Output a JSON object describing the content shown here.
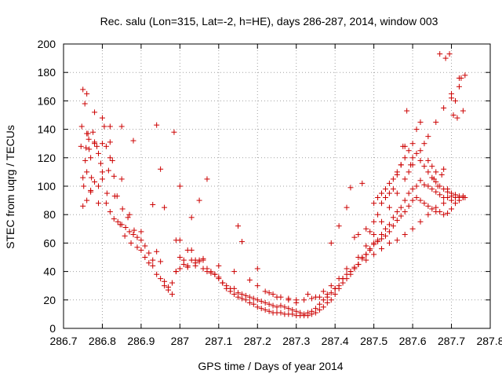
{
  "chart_data": {
    "type": "scatter",
    "title": "Rec. salu (Lon=315, Lat=-2, h=HE), days 286-287, 2014, window 003",
    "xlabel": "GPS time / Days of year 2014",
    "ylabel": "STEC from uqrg / TECUs",
    "xlim": [
      286.7,
      287.8
    ],
    "ylim": [
      0,
      200
    ],
    "xticks": [
      "286.7",
      "286.8",
      "286.9",
      "287",
      "287.1",
      "287.2",
      "287.3",
      "287.4",
      "287.5",
      "287.6",
      "287.7",
      "287.8"
    ],
    "yticks": [
      "0",
      "20",
      "40",
      "60",
      "80",
      "100",
      "120",
      "140",
      "160",
      "180",
      "200"
    ],
    "grid": true,
    "marker": "plus",
    "color": "#cc0000",
    "series": [
      {
        "x": [
          286.745,
          286.747,
          286.75,
          286.752,
          286.756,
          286.758,
          286.76,
          286.763,
          286.766,
          286.77,
          286.772,
          286.776,
          286.78,
          286.786,
          286.79,
          286.796,
          286.8,
          286.805,
          286.812,
          286.816,
          286.82,
          286.826,
          286.832,
          286.838,
          286.846,
          286.852,
          286.858,
          286.866,
          286.874,
          286.882,
          286.89,
          286.9,
          286.91,
          286.92,
          286.93,
          286.94,
          286.95,
          286.96,
          286.97,
          286.98,
          286.99,
          287.0,
          287.01,
          287.02,
          287.03,
          287.04,
          287.05,
          287.06,
          287.07,
          287.08,
          287.09,
          287.1,
          287.11,
          287.12,
          287.13,
          287.14,
          287.15,
          287.16,
          287.17,
          287.18,
          287.19,
          287.2,
          287.21,
          287.22,
          287.23,
          287.24,
          287.25,
          287.26,
          287.27,
          287.28,
          287.29,
          287.3,
          287.31,
          287.32,
          287.33,
          287.34,
          287.35,
          287.36,
          287.37,
          287.38,
          287.39,
          287.4,
          287.41,
          287.42,
          287.43,
          287.44,
          287.45,
          287.46,
          287.47,
          287.48,
          287.49,
          287.5,
          287.51,
          287.52,
          287.53,
          287.54,
          287.55,
          287.56,
          287.57,
          287.58,
          287.59,
          287.6,
          287.61,
          287.62,
          287.63,
          287.64,
          287.65,
          287.66,
          287.67,
          287.68,
          287.69,
          287.7,
          287.71,
          287.72,
          287.73,
          287.735
        ],
        "y": [
          128,
          142,
          106,
          100,
          118,
          127,
          110,
          137,
          126,
          96,
          106,
          138,
          131,
          128,
          100,
          116,
          130,
          142,
          95,
          111,
          120,
          118,
          93,
          93,
          73,
          84,
          65,
          78,
          60,
          69,
          57,
          55,
          50,
          46,
          44,
          54,
          47,
          30,
          29,
          32,
          40,
          62,
          45,
          55,
          55,
          48,
          47,
          49,
          42,
          40,
          38,
          35,
          32,
          30,
          28,
          28,
          25,
          24,
          23,
          22,
          21,
          20,
          19,
          18,
          17,
          16,
          15,
          16,
          15,
          14,
          13,
          12,
          11,
          10,
          11,
          12,
          14,
          17,
          20,
          22,
          25,
          28,
          30,
          35,
          38,
          40,
          43,
          45,
          50,
          52,
          55,
          60,
          62,
          66,
          70,
          73,
          78,
          82,
          85,
          90,
          95,
          98,
          100,
          104,
          101,
          100,
          98,
          96,
          94,
          92,
          92,
          93,
          92,
          92,
          93,
          92
        ]
      },
      {
        "x": [
          286.75,
          286.76,
          286.77,
          286.78,
          286.79,
          286.8,
          286.81,
          286.82,
          286.83,
          286.84,
          286.85,
          286.86,
          286.87,
          286.88,
          286.89,
          286.9,
          286.91,
          286.92,
          286.93,
          286.94,
          286.95,
          286.96,
          286.97,
          286.98,
          286.99,
          287.0,
          287.01,
          287.02,
          287.03,
          287.04,
          287.05,
          287.06,
          287.07,
          287.08,
          287.09,
          287.1,
          287.11,
          287.12,
          287.13,
          287.14,
          287.15,
          287.16,
          287.17,
          287.18,
          287.19,
          287.2,
          287.21,
          287.22,
          287.23,
          287.24,
          287.25,
          287.26,
          287.27,
          287.28,
          287.29,
          287.3,
          287.31,
          287.32,
          287.33,
          287.34,
          287.35,
          287.36,
          287.37,
          287.38,
          287.39,
          287.4,
          287.41,
          287.42,
          287.43,
          287.44,
          287.45,
          287.46,
          287.47,
          287.48,
          287.49,
          287.5,
          287.51,
          287.52,
          287.53,
          287.54,
          287.55,
          287.56,
          287.57,
          287.58,
          287.59,
          287.6,
          287.61,
          287.62,
          287.63,
          287.64,
          287.65,
          287.66,
          287.67,
          287.68,
          287.69,
          287.7,
          287.71,
          287.72,
          287.73
        ],
        "y": [
          86,
          90,
          97,
          103,
          88,
          105,
          88,
          82,
          77,
          75,
          73,
          71,
          68,
          66,
          64,
          62,
          58,
          53,
          48,
          38,
          35,
          33,
          27,
          24,
          40,
          42,
          48,
          44,
          48,
          46,
          48,
          42,
          40,
          39,
          38,
          36,
          32,
          28,
          26,
          24,
          22,
          21,
          20,
          18,
          17,
          15,
          14,
          13,
          12,
          11,
          11,
          11,
          10,
          10,
          10,
          9,
          9,
          9,
          9,
          10,
          11,
          13,
          15,
          18,
          20,
          24,
          28,
          32,
          35,
          38,
          42,
          45,
          49,
          52,
          56,
          59,
          61,
          63,
          65,
          68,
          72,
          76,
          79,
          82,
          86,
          90,
          92,
          90,
          88,
          86,
          84,
          82,
          82,
          80,
          81,
          84,
          88,
          90,
          92
        ]
      },
      {
        "x": [
          286.75,
          286.755,
          286.76,
          286.765,
          286.77,
          286.78,
          286.79,
          286.8,
          286.81,
          286.82,
          286.83,
          286.85,
          286.87,
          286.9,
          286.93,
          286.96,
          286.99,
          287.0,
          287.02,
          287.04,
          287.06,
          287.1,
          287.14,
          287.18,
          287.2,
          287.22,
          287.24,
          287.26,
          287.28,
          287.3,
          287.32,
          287.34,
          287.36,
          287.38,
          287.4,
          287.42,
          287.44,
          287.46,
          287.48,
          287.5,
          287.52,
          287.54,
          287.56,
          287.58,
          287.6,
          287.62,
          287.64,
          287.66,
          287.68,
          287.7,
          287.72
        ],
        "y": [
          168,
          158,
          137,
          133,
          120,
          130,
          123,
          110,
          128,
          131,
          107,
          105,
          80,
          68,
          87,
          85,
          62,
          50,
          43,
          44,
          48,
          44,
          40,
          34,
          30,
          26,
          24,
          22,
          21,
          20,
          20,
          21,
          22,
          24,
          28,
          35,
          40,
          45,
          48,
          52,
          56,
          60,
          62,
          66,
          70,
          75,
          80,
          85,
          88,
          90,
          92
        ]
      },
      {
        "x": [
          286.76,
          286.78,
          286.8,
          286.82,
          286.85,
          286.88,
          286.94,
          286.95,
          286.985,
          287.0,
          287.03,
          287.05,
          287.07,
          287.15,
          287.16,
          287.2,
          287.23,
          287.25,
          287.28,
          287.3,
          287.33,
          287.35,
          287.37,
          287.39,
          287.41,
          287.43,
          287.46,
          287.48,
          287.5,
          287.52,
          287.54,
          287.56,
          287.58,
          287.6,
          287.62,
          287.64,
          287.66,
          287.68,
          287.7,
          287.72
        ],
        "y": [
          165,
          152,
          148,
          142,
          142,
          132,
          143,
          112,
          138,
          100,
          78,
          90,
          105,
          72,
          61,
          42,
          25,
          22,
          20,
          18,
          24,
          22,
          26,
          30,
          35,
          42,
          50,
          58,
          66,
          75,
          85,
          95,
          105,
          115,
          125,
          135,
          145,
          155,
          165,
          170
        ]
      },
      {
        "x": [
          287.39,
          287.41,
          287.43,
          287.44,
          287.45,
          287.46,
          287.47,
          287.48,
          287.49,
          287.5,
          287.51,
          287.52,
          287.53,
          287.54,
          287.55,
          287.56,
          287.57,
          287.575,
          287.58,
          287.585,
          287.59,
          287.595,
          287.6,
          287.61,
          287.62,
          287.63,
          287.64,
          287.65,
          287.655,
          287.66,
          287.665,
          287.67,
          287.675,
          287.68,
          287.685,
          287.69,
          287.695,
          287.7,
          287.705,
          287.71,
          287.715,
          287.72,
          287.725,
          287.73,
          287.735
        ],
        "y": [
          60,
          72,
          85,
          99,
          64,
          66,
          102,
          70,
          68,
          75,
          80,
          88,
          92,
          95,
          98,
          108,
          115,
          128,
          128,
          153,
          110,
          115,
          120,
          140,
          145,
          130,
          118,
          114,
          105,
          110,
          100,
          193,
          108,
          112,
          190,
          98,
          193,
          162,
          150,
          160,
          148,
          176,
          176,
          153,
          178
        ]
      },
      {
        "x": [
          287.5,
          287.51,
          287.52,
          287.53,
          287.54,
          287.55,
          287.56,
          287.57,
          287.58,
          287.59,
          287.6,
          287.61,
          287.62,
          287.63,
          287.64,
          287.65,
          287.66,
          287.67,
          287.68,
          287.69,
          287.7,
          287.71,
          287.72,
          287.73
        ],
        "y": [
          88,
          92,
          95,
          98,
          102,
          105,
          110,
          115,
          120,
          125,
          130,
          123,
          118,
          114,
          110,
          106,
          103,
          100,
          98,
          96,
          95,
          94,
          93,
          92
        ]
      }
    ]
  }
}
